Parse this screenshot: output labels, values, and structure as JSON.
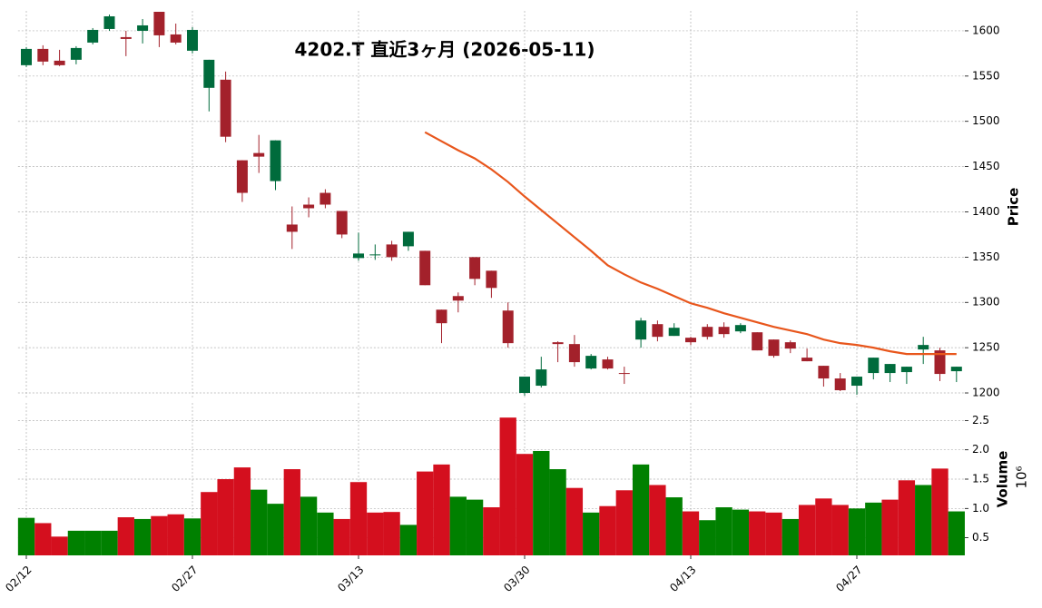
{
  "chart_data": {
    "type": "candlestick",
    "title": "4202.T  直近3ヶ月  (2026-05-11)",
    "categories": [
      "02/12",
      null,
      null,
      null,
      null,
      null,
      null,
      null,
      null,
      null,
      "02/27",
      null,
      null,
      null,
      null,
      null,
      null,
      null,
      null,
      null,
      "03/13",
      null,
      null,
      null,
      null,
      null,
      null,
      null,
      null,
      null,
      "03/30",
      null,
      null,
      null,
      null,
      null,
      null,
      null,
      null,
      null,
      "04/13",
      null,
      null,
      null,
      null,
      null,
      null,
      null,
      null,
      null,
      "04/27",
      null,
      null,
      null,
      null,
      null,
      null
    ],
    "open": [
      1562,
      1580,
      1567,
      1568,
      1587,
      1602,
      1593,
      1600,
      1621,
      1596,
      1578,
      1537,
      1546,
      1457,
      1465,
      1434,
      1386,
      1408,
      1421,
      1401,
      1349,
      1352,
      1364,
      1362,
      1357,
      1292,
      1307,
      1350,
      1335,
      1291,
      1200,
      1208,
      1256,
      1254,
      1227,
      1237,
      1222,
      1259,
      1276,
      1263,
      1261,
      1273,
      1273,
      1268,
      1267,
      1259,
      1256,
      1239,
      1230,
      1216,
      1208,
      1222,
      1222,
      1223,
      1248,
      1247,
      1224
    ],
    "high": [
      1582,
      1584,
      1579,
      1583,
      1603,
      1618,
      1600,
      1613,
      1621,
      1608,
      1604,
      1568,
      1555,
      1457,
      1485,
      1479,
      1406,
      1416,
      1425,
      1401,
      1377,
      1364,
      1368,
      1378,
      1357,
      1292,
      1311,
      1350,
      1335,
      1300,
      1218,
      1240,
      1257,
      1264,
      1243,
      1240,
      1229,
      1283,
      1280,
      1277,
      1262,
      1276,
      1278,
      1277,
      1267,
      1259,
      1258,
      1249,
      1230,
      1222,
      1218,
      1239,
      1232,
      1229,
      1262,
      1250,
      1229
    ],
    "low": [
      1560,
      1562,
      1561,
      1563,
      1585,
      1600,
      1572,
      1586,
      1582,
      1585,
      1575,
      1511,
      1477,
      1411,
      1443,
      1424,
      1359,
      1394,
      1404,
      1371,
      1346,
      1347,
      1346,
      1357,
      1319,
      1255,
      1289,
      1319,
      1305,
      1250,
      1197,
      1206,
      1234,
      1229,
      1226,
      1226,
      1210,
      1250,
      1257,
      1263,
      1253,
      1259,
      1261,
      1266,
      1247,
      1239,
      1244,
      1235,
      1207,
      1202,
      1198,
      1215,
      1212,
      1210,
      1232,
      1213,
      1212
    ],
    "close": [
      1580,
      1566,
      1562,
      1581,
      1601,
      1616,
      1591,
      1606,
      1595,
      1587,
      1601,
      1568,
      1483,
      1421,
      1461,
      1479,
      1378,
      1404,
      1408,
      1375,
      1354,
      1353,
      1350,
      1378,
      1319,
      1277,
      1302,
      1326,
      1316,
      1255,
      1218,
      1226,
      1254,
      1234,
      1241,
      1227,
      1221,
      1280,
      1262,
      1272,
      1256,
      1262,
      1265,
      1275,
      1247,
      1241,
      1249,
      1235,
      1216,
      1203,
      1218,
      1239,
      1232,
      1229,
      1253,
      1221,
      1229
    ],
    "volume": [
      0.84,
      0.75,
      0.52,
      0.62,
      0.62,
      0.62,
      0.85,
      0.82,
      0.87,
      0.9,
      0.83,
      1.28,
      1.5,
      1.7,
      1.32,
      1.08,
      1.67,
      1.2,
      0.93,
      0.82,
      1.45,
      0.93,
      0.94,
      0.72,
      1.63,
      1.75,
      1.2,
      1.15,
      1.02,
      2.55,
      1.93,
      1.98,
      1.67,
      1.35,
      0.93,
      1.04,
      1.31,
      1.75,
      1.4,
      1.19,
      0.95,
      0.8,
      1.02,
      0.98,
      0.95,
      0.93,
      0.82,
      1.06,
      1.17,
      1.06,
      1.0,
      1.1,
      1.15,
      1.48,
      1.4,
      1.68,
      0.95
    ],
    "ma": {
      "color": "#e8561c",
      "values": [
        null,
        null,
        null,
        null,
        null,
        null,
        null,
        null,
        null,
        null,
        null,
        null,
        null,
        null,
        null,
        null,
        null,
        null,
        null,
        null,
        null,
        null,
        null,
        null,
        1488,
        1478,
        1468,
        1459,
        1447,
        1433,
        1417,
        1402,
        1387,
        1372,
        1357,
        1341,
        1331,
        1322,
        1315,
        1307,
        1299,
        1294,
        1288,
        1283,
        1278,
        1273,
        1269,
        1265,
        1259,
        1255,
        1253,
        1250,
        1246,
        1243,
        1243,
        1243,
        1243
      ]
    },
    "up_color": "#006b3c",
    "down_color": "#a3212b",
    "volume_up_color": "#008000",
    "volume_down_color": "#d40f1e",
    "ylabel": "Price",
    "ylim": [
      1193,
      1622
    ],
    "yticks": [
      1200,
      1250,
      1300,
      1350,
      1400,
      1450,
      1500,
      1550,
      1600
    ],
    "y2label": "Volume",
    "y2_offset_label": "10⁶",
    "y2lim": [
      0.2,
      2.8
    ],
    "y2ticks": [
      0.5,
      {
        "value": 1.0,
        "label": "1.0"
      },
      1.5,
      {
        "value": 2.0,
        "label": "2.0"
      },
      2.5
    ],
    "grid": true
  }
}
